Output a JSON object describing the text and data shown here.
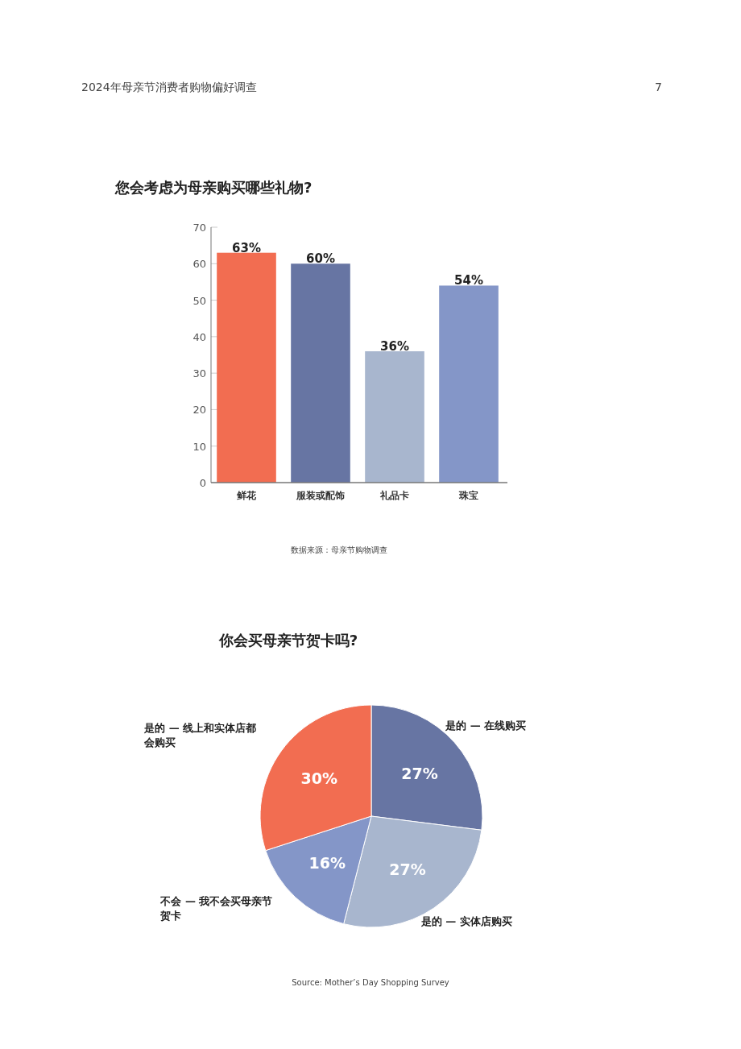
{
  "chart_data": [
    {
      "type": "bar",
      "title": "您会考虑为母亲购买哪些礼物?",
      "annotations": [
        "2024年母亲节消费者购物偏好调查",
        "7",
        "数据来源：母亲节购物调查"
      ],
      "categories": [
        "鲜花",
        "服装或配饰",
        "礼品卡",
        "珠宝"
      ],
      "values": [
        63,
        60,
        36,
        54
      ],
      "colors": [
        "#f26d51",
        "#6775a3",
        "#a8b6ce",
        "#8496c8"
      ],
      "value_labels": [
        "63%",
        "60%",
        "36%",
        "54%"
      ],
      "ylim": [
        0,
        70
      ],
      "yticks": [
        0,
        10,
        20,
        30,
        40,
        50,
        60,
        70
      ]
    },
    {
      "type": "pie",
      "title": "你会买母亲节贺卡吗?",
      "annotations": [
        "Source: Mother’s Day Shopping Survey"
      ],
      "categories": [
        "是的 — 在线购买",
        "是的 — 实体店购买",
        "不会 — 我不会买母亲节贺卡",
        "是的 — 线上和实体店都会购买"
      ],
      "values": [
        27,
        27,
        16,
        30
      ],
      "colors": [
        "#6775a3",
        "#a8b6ce",
        "#8496c8",
        "#f26d51"
      ],
      "value_labels": [
        "27%",
        "27%",
        "16%",
        "30%"
      ]
    }
  ]
}
